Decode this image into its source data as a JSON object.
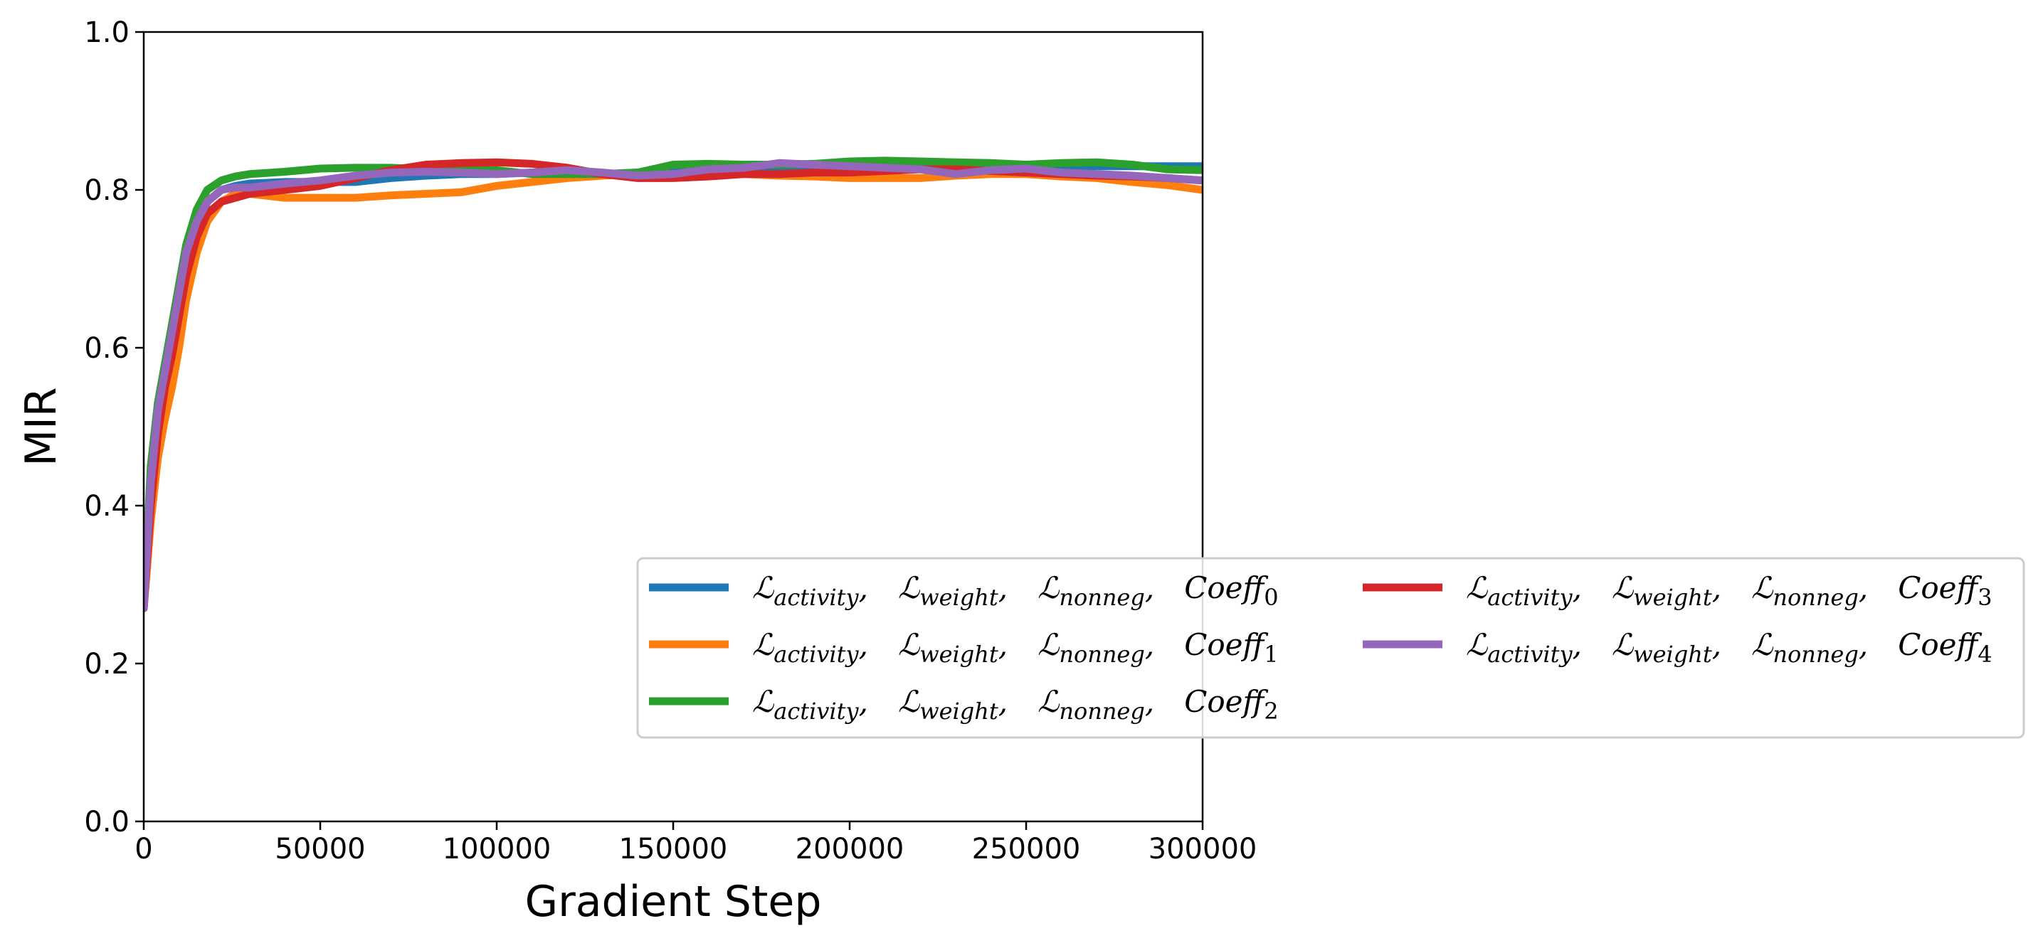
{
  "chart_data": {
    "type": "line",
    "title": "",
    "xlabel": "Gradient Step",
    "ylabel": "MIR",
    "xlim": [
      0,
      300000
    ],
    "ylim": [
      0.0,
      1.0
    ],
    "x_ticks": [
      "0",
      "50000",
      "100000",
      "150000",
      "200000",
      "250000",
      "300000"
    ],
    "y_ticks": [
      "0.0",
      "0.2",
      "0.4",
      "0.6",
      "0.8",
      "1.0"
    ],
    "grid": false,
    "legend_position": "lower-right",
    "legend_columns": 2,
    "legend_label_parts": {
      "terms": [
        "activity",
        "weight",
        "nonneg"
      ],
      "coeff_prefix": "Coeff"
    },
    "series": [
      {
        "name": "L_activity, L_weight, L_nonneg, Coeff_0",
        "color": "#1f77b4",
        "x": [
          0,
          2000,
          4000,
          6000,
          8000,
          10000,
          12000,
          15000,
          18000,
          22000,
          26000,
          30000,
          40000,
          50000,
          60000,
          70000,
          80000,
          90000,
          100000,
          110000,
          120000,
          130000,
          140000,
          150000,
          160000,
          170000,
          180000,
          190000,
          200000,
          210000,
          220000,
          230000,
          240000,
          250000,
          260000,
          270000,
          280000,
          290000,
          300000
        ],
        "y": [
          0.27,
          0.42,
          0.5,
          0.56,
          0.6,
          0.65,
          0.7,
          0.75,
          0.785,
          0.8,
          0.805,
          0.808,
          0.81,
          0.81,
          0.81,
          0.815,
          0.818,
          0.82,
          0.82,
          0.822,
          0.822,
          0.82,
          0.822,
          0.823,
          0.823,
          0.825,
          0.825,
          0.825,
          0.826,
          0.828,
          0.828,
          0.827,
          0.828,
          0.828,
          0.829,
          0.83,
          0.83,
          0.83,
          0.83
        ]
      },
      {
        "name": "L_activity, L_weight, L_nonneg, Coeff_1",
        "color": "#ff7f0e",
        "x": [
          0,
          2000,
          4000,
          6000,
          8000,
          10000,
          12000,
          15000,
          18000,
          22000,
          26000,
          30000,
          40000,
          50000,
          60000,
          70000,
          80000,
          90000,
          100000,
          110000,
          120000,
          130000,
          140000,
          150000,
          160000,
          170000,
          180000,
          190000,
          200000,
          210000,
          220000,
          230000,
          240000,
          250000,
          260000,
          270000,
          280000,
          290000,
          300000
        ],
        "y": [
          0.27,
          0.38,
          0.46,
          0.51,
          0.55,
          0.6,
          0.66,
          0.72,
          0.76,
          0.785,
          0.795,
          0.795,
          0.79,
          0.79,
          0.79,
          0.793,
          0.795,
          0.797,
          0.805,
          0.81,
          0.815,
          0.818,
          0.82,
          0.82,
          0.82,
          0.82,
          0.818,
          0.817,
          0.815,
          0.815,
          0.815,
          0.818,
          0.82,
          0.82,
          0.817,
          0.815,
          0.81,
          0.806,
          0.8
        ]
      },
      {
        "name": "L_activity, L_weight, L_nonneg, Coeff_2",
        "color": "#2ca02c",
        "x": [
          0,
          2000,
          4000,
          6000,
          8000,
          10000,
          12000,
          15000,
          18000,
          22000,
          26000,
          30000,
          40000,
          50000,
          60000,
          70000,
          80000,
          90000,
          100000,
          110000,
          120000,
          130000,
          140000,
          150000,
          160000,
          170000,
          180000,
          190000,
          200000,
          210000,
          220000,
          230000,
          240000,
          250000,
          260000,
          270000,
          280000,
          290000,
          300000
        ],
        "y": [
          0.27,
          0.45,
          0.53,
          0.58,
          0.63,
          0.68,
          0.73,
          0.775,
          0.8,
          0.812,
          0.817,
          0.82,
          0.823,
          0.827,
          0.828,
          0.828,
          0.826,
          0.825,
          0.825,
          0.82,
          0.82,
          0.82,
          0.822,
          0.832,
          0.833,
          0.832,
          0.832,
          0.833,
          0.836,
          0.837,
          0.836,
          0.835,
          0.834,
          0.832,
          0.834,
          0.835,
          0.832,
          0.826,
          0.825
        ]
      },
      {
        "name": "L_activity, L_weight, L_nonneg, Coeff_3",
        "color": "#d62728",
        "x": [
          0,
          2000,
          4000,
          6000,
          8000,
          10000,
          12000,
          15000,
          18000,
          22000,
          26000,
          30000,
          40000,
          50000,
          60000,
          70000,
          80000,
          90000,
          100000,
          110000,
          120000,
          130000,
          140000,
          150000,
          160000,
          170000,
          180000,
          190000,
          200000,
          210000,
          220000,
          230000,
          240000,
          250000,
          260000,
          270000,
          280000,
          290000,
          300000
        ],
        "y": [
          0.27,
          0.4,
          0.49,
          0.55,
          0.59,
          0.64,
          0.69,
          0.74,
          0.77,
          0.785,
          0.79,
          0.795,
          0.8,
          0.805,
          0.815,
          0.825,
          0.832,
          0.834,
          0.835,
          0.833,
          0.828,
          0.82,
          0.815,
          0.815,
          0.817,
          0.82,
          0.82,
          0.822,
          0.822,
          0.824,
          0.826,
          0.826,
          0.824,
          0.822,
          0.82,
          0.818,
          0.817,
          0.815,
          0.812
        ]
      },
      {
        "name": "L_activity, L_weight, L_nonneg, Coeff_4",
        "color": "#9467bd",
        "x": [
          0,
          2000,
          4000,
          6000,
          8000,
          10000,
          12000,
          15000,
          18000,
          22000,
          26000,
          30000,
          40000,
          50000,
          60000,
          70000,
          80000,
          90000,
          100000,
          110000,
          120000,
          130000,
          140000,
          150000,
          160000,
          170000,
          180000,
          190000,
          200000,
          210000,
          220000,
          230000,
          240000,
          250000,
          260000,
          270000,
          280000,
          290000,
          300000
        ],
        "y": [
          0.27,
          0.43,
          0.52,
          0.57,
          0.62,
          0.67,
          0.72,
          0.76,
          0.785,
          0.8,
          0.803,
          0.803,
          0.808,
          0.812,
          0.818,
          0.822,
          0.823,
          0.822,
          0.82,
          0.822,
          0.825,
          0.822,
          0.818,
          0.82,
          0.826,
          0.828,
          0.834,
          0.832,
          0.83,
          0.828,
          0.826,
          0.82,
          0.825,
          0.827,
          0.822,
          0.82,
          0.818,
          0.815,
          0.812
        ]
      }
    ]
  }
}
